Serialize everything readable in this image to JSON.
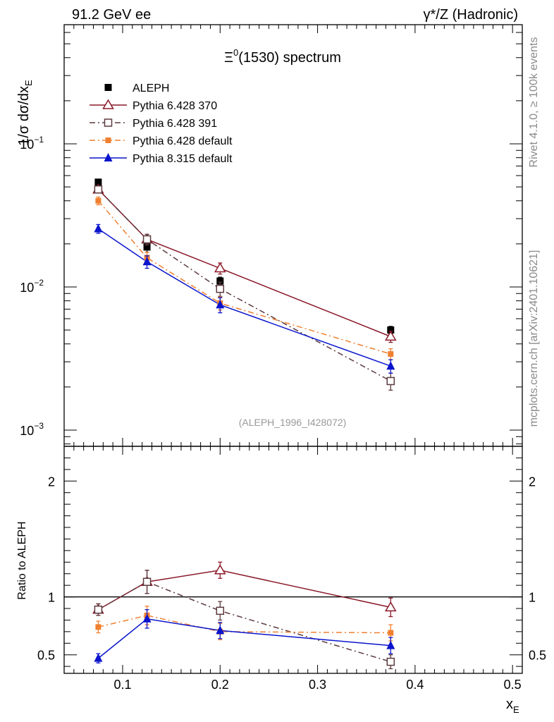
{
  "header": {
    "left": "91.2 GeV ee",
    "right": "γ*/Z (Hadronic)"
  },
  "side_labels": {
    "rivet": "Rivet 4.1.0, ≥ 100k events",
    "mcplots": "mcplots.cern.ch [arXiv:2401.10621]"
  },
  "chart_data": [
    {
      "type": "line",
      "title": "Ξ0(1530) spectrum",
      "title_base": "Ξ",
      "title_sup": "0",
      "title_rest": "(1530) spectrum",
      "ylabel": "1/σ  dσ/dx_E",
      "ylabel_main": "1/σ  dσ/dx",
      "ylabel_sub": "E",
      "yscale": "log",
      "xlim": [
        0.04,
        0.51
      ],
      "ylim": [
        0.00077,
        0.68
      ],
      "ytick_labels": [
        {
          "value": 0.1,
          "base": "10",
          "exp": "−1"
        },
        {
          "value": 0.01,
          "base": "10",
          "exp": "−2"
        },
        {
          "value": 0.001,
          "base": "10",
          "exp": "−3"
        }
      ],
      "watermark": "(ALEPH_1996_I428072)",
      "legend_position": "top-left",
      "x": [
        0.075,
        0.125,
        0.2,
        0.375
      ],
      "series": [
        {
          "name": "ALEPH",
          "color": "#000000",
          "marker": "filled-square",
          "line": "none",
          "values": [
            0.054,
            0.019,
            0.011,
            0.005
          ],
          "errors": [
            0.0025,
            0.0015,
            0.0007,
            0.0003
          ]
        },
        {
          "name": "Pythia 6.428 370",
          "color": "#8b1a2a",
          "marker": "open-triangle",
          "line": "solid",
          "values": [
            0.048,
            0.0215,
            0.0135,
            0.0045
          ],
          "errors": [
            0.0025,
            0.0018,
            0.0012,
            0.0004
          ]
        },
        {
          "name": "Pythia 6.428 391",
          "color": "#5c3a3f",
          "marker": "open-square",
          "line": "dash-dot",
          "values": [
            0.048,
            0.0215,
            0.0097,
            0.0022
          ],
          "errors": [
            0.0025,
            0.0018,
            0.0011,
            0.0003
          ]
        },
        {
          "name": "Pythia 6.428 default",
          "color": "#f08030",
          "marker": "small-filled-square",
          "line": "dash-dot",
          "values": [
            0.04,
            0.016,
            0.0077,
            0.0034
          ],
          "errors": [
            0.0025,
            0.0015,
            0.0008,
            0.0003
          ]
        },
        {
          "name": "Pythia 8.315 default",
          "color": "#0a14cc",
          "marker": "filled-triangle",
          "line": "solid",
          "values": [
            0.0255,
            0.015,
            0.0075,
            0.0028
          ],
          "errors": [
            0.0018,
            0.0015,
            0.0009,
            0.0003
          ]
        }
      ]
    },
    {
      "type": "line",
      "title": "",
      "ylabel": "Ratio to ALEPH",
      "xlabel": "x_E",
      "xlabel_main": "x",
      "xlabel_sub": "E",
      "xlim": [
        0.04,
        0.51
      ],
      "ylim": [
        0.34,
        2.3
      ],
      "xticks": [
        0.1,
        0.2,
        0.3,
        0.4,
        0.5
      ],
      "xtick_labels": [
        "0.1",
        "0.2",
        "0.3",
        "0.4",
        "0.5"
      ],
      "yticks": [
        0.5,
        1,
        2
      ],
      "ytick_labels": [
        "0.5",
        "1",
        "2"
      ],
      "reference_line": 1,
      "x": [
        0.075,
        0.125,
        0.2,
        0.375
      ],
      "series": [
        {
          "name": "Pythia 6.428 370",
          "color": "#8b1a2a",
          "marker": "open-triangle",
          "line": "solid",
          "values": [
            0.89,
            1.13,
            1.23,
            0.91
          ],
          "errors": [
            0.05,
            0.1,
            0.07,
            0.08
          ]
        },
        {
          "name": "Pythia 6.428 391",
          "color": "#5c3a3f",
          "marker": "open-square",
          "line": "dash-dot",
          "values": [
            0.89,
            1.13,
            0.88,
            0.44
          ],
          "errors": [
            0.05,
            0.1,
            0.08,
            0.06
          ]
        },
        {
          "name": "Pythia 6.428 default",
          "color": "#f08030",
          "marker": "small-filled-square",
          "line": "dash-dot",
          "values": [
            0.74,
            0.84,
            0.7,
            0.69
          ],
          "errors": [
            0.05,
            0.08,
            0.07,
            0.07
          ]
        },
        {
          "name": "Pythia 8.315 default",
          "color": "#0a14cc",
          "marker": "filled-triangle",
          "line": "solid",
          "values": [
            0.47,
            0.81,
            0.71,
            0.58
          ],
          "errors": [
            0.04,
            0.08,
            0.07,
            0.07
          ]
        }
      ]
    }
  ]
}
